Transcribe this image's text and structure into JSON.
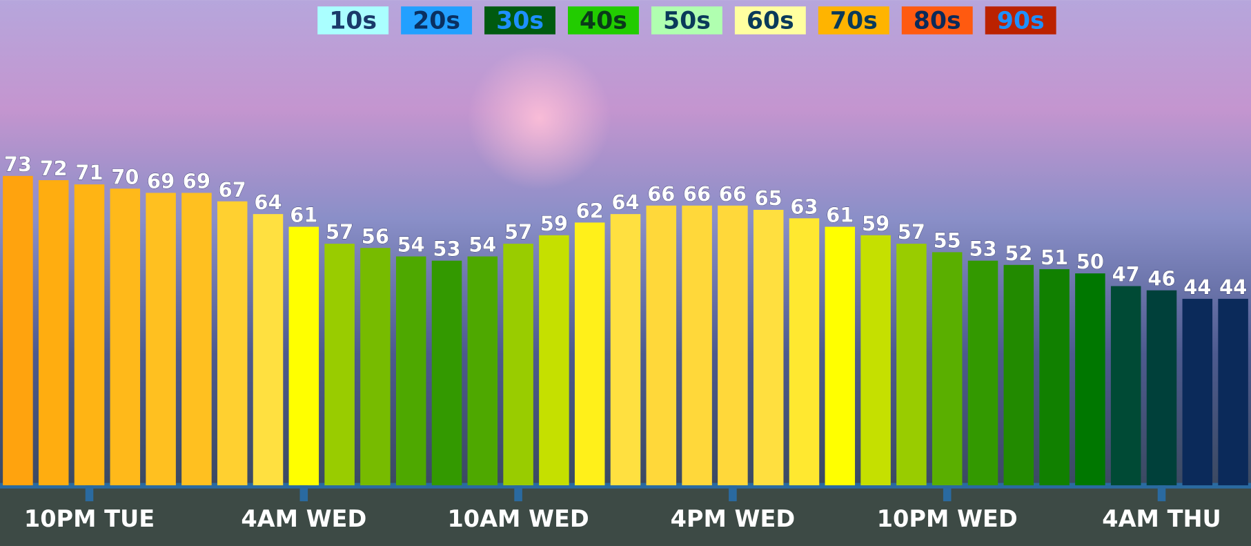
{
  "chart_data": {
    "type": "bar",
    "categories": [
      null,
      null,
      "10PM TUE",
      null,
      null,
      null,
      null,
      null,
      "4AM WED",
      null,
      null,
      null,
      null,
      null,
      "10AM WED",
      null,
      null,
      null,
      null,
      null,
      "4PM WED",
      null,
      null,
      null,
      null,
      null,
      "10PM WED",
      null,
      null,
      null,
      null,
      null,
      "4AM THU",
      null,
      null
    ],
    "values": [
      73,
      72,
      71,
      70,
      69,
      69,
      67,
      64,
      61,
      57,
      56,
      54,
      53,
      54,
      57,
      59,
      62,
      64,
      66,
      66,
      66,
      65,
      63,
      61,
      59,
      57,
      55,
      53,
      52,
      51,
      50,
      47,
      46,
      44,
      44
    ],
    "colors": [
      "#ffa30e",
      "#ffad10",
      "#ffb414",
      "#ffb91a",
      "#ffc020",
      "#ffc020",
      "#ffd030",
      "#ffe040",
      "#ffff00",
      "#99cc00",
      "#77bb00",
      "#4ea800",
      "#339900",
      "#4ea800",
      "#99cc00",
      "#c5e000",
      "#fff01a",
      "#ffe040",
      "#ffd83a",
      "#ffd83a",
      "#ffd83a",
      "#ffdf3f",
      "#ffe830",
      "#ffff00",
      "#c5e000",
      "#99cc00",
      "#5aaf00",
      "#339900",
      "#228a00",
      "#118000",
      "#007700",
      "#004a35",
      "#00403a",
      "#0b2a5a",
      "#0b2a5a"
    ],
    "ylim": [
      0,
      114.5
    ],
    "legend": [
      {
        "label": "10s",
        "color": "#aaffff",
        "text_color": "#1a3a6a"
      },
      {
        "label": "20s",
        "color": "#22a0ff",
        "text_color": "#0a3060"
      },
      {
        "label": "30s",
        "color": "#005a10",
        "text_color": "#1e90ff"
      },
      {
        "label": "40s",
        "color": "#22cc00",
        "text_color": "#0a3a1a"
      },
      {
        "label": "50s",
        "color": "#b0ffb0",
        "text_color": "#0a3a5a"
      },
      {
        "label": "60s",
        "color": "#ffffa0",
        "text_color": "#0a3a5a"
      },
      {
        "label": "70s",
        "color": "#ffb400",
        "text_color": "#0a3a5a"
      },
      {
        "label": "80s",
        "color": "#ff5a10",
        "text_color": "#0a2a5a"
      },
      {
        "label": "90s",
        "color": "#bb2200",
        "text_color": "#1e90ff"
      }
    ]
  }
}
